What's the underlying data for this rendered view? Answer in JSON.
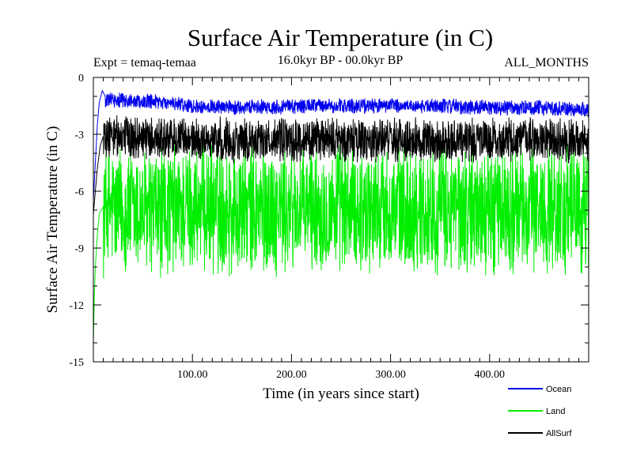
{
  "chart_data": {
    "type": "line",
    "title": "Surface Air Temperature (in C)",
    "subtitle": "16.0kyr BP - 00.0kyr BP",
    "experiment_label": "Expt = temaq-temaa",
    "months_label": "ALL_MONTHS",
    "xlabel": "Time (in years since start)",
    "ylabel": "Surface Air Temperature (in C)",
    "xlim": [
      0,
      500
    ],
    "ylim": [
      -15,
      0
    ],
    "xticks": [
      100,
      200,
      300,
      400
    ],
    "xtick_labels": [
      "100.00",
      "200.00",
      "300.00",
      "400.00"
    ],
    "yticks": [
      0,
      -3,
      -6,
      -9,
      -12,
      -15
    ],
    "ytick_labels": [
      "0",
      "-3",
      "-6",
      "-9",
      "-12",
      "-15"
    ],
    "legend_position": "bottom-right",
    "series": [
      {
        "name": "Land",
        "color": "#00ee00",
        "start": [
          [
            0,
            -14.0
          ],
          [
            1,
            -11.5
          ],
          [
            2,
            -10.0
          ],
          [
            4,
            -8.3
          ],
          [
            6,
            -7.2
          ],
          [
            10,
            -6.8
          ]
        ],
        "mean": -6.9,
        "amplitude": 3.0,
        "points": [
          [
            20,
            -7.0
          ],
          [
            60,
            -7.2
          ],
          [
            100,
            -6.9
          ],
          [
            150,
            -7.0
          ],
          [
            200,
            -7.0
          ],
          [
            250,
            -6.9
          ],
          [
            300,
            -7.0
          ],
          [
            350,
            -7.0
          ],
          [
            400,
            -7.0
          ],
          [
            450,
            -6.9
          ],
          [
            500,
            -7.0
          ]
        ]
      },
      {
        "name": "AllSurf",
        "color": "#000000",
        "start": [
          [
            0,
            -7.2
          ],
          [
            2,
            -6.0
          ],
          [
            4,
            -4.8
          ],
          [
            7,
            -3.6
          ],
          [
            10,
            -3.1
          ]
        ],
        "mean": -3.3,
        "amplitude": 1.0,
        "points": [
          [
            20,
            -3.1
          ],
          [
            60,
            -3.2
          ],
          [
            100,
            -3.3
          ],
          [
            150,
            -3.3
          ],
          [
            200,
            -3.3
          ],
          [
            250,
            -3.3
          ],
          [
            300,
            -3.3
          ],
          [
            350,
            -3.3
          ],
          [
            400,
            -3.3
          ],
          [
            450,
            -3.3
          ],
          [
            500,
            -3.4
          ]
        ]
      },
      {
        "name": "Ocean",
        "color": "#0000ee",
        "start": [
          [
            0,
            -6.5
          ],
          [
            2,
            -4.5
          ],
          [
            4,
            -2.5
          ],
          [
            6,
            -1.3
          ],
          [
            9,
            -0.7
          ],
          [
            12,
            -1.0
          ]
        ],
        "mean": -1.5,
        "amplitude": 0.35,
        "points": [
          [
            20,
            -1.2
          ],
          [
            60,
            -1.3
          ],
          [
            100,
            -1.5
          ],
          [
            150,
            -1.6
          ],
          [
            200,
            -1.5
          ],
          [
            250,
            -1.5
          ],
          [
            300,
            -1.5
          ],
          [
            350,
            -1.5
          ],
          [
            400,
            -1.6
          ],
          [
            450,
            -1.6
          ],
          [
            500,
            -1.7
          ]
        ]
      }
    ],
    "legend_order": [
      "Ocean",
      "Land",
      "AllSurf"
    ]
  }
}
